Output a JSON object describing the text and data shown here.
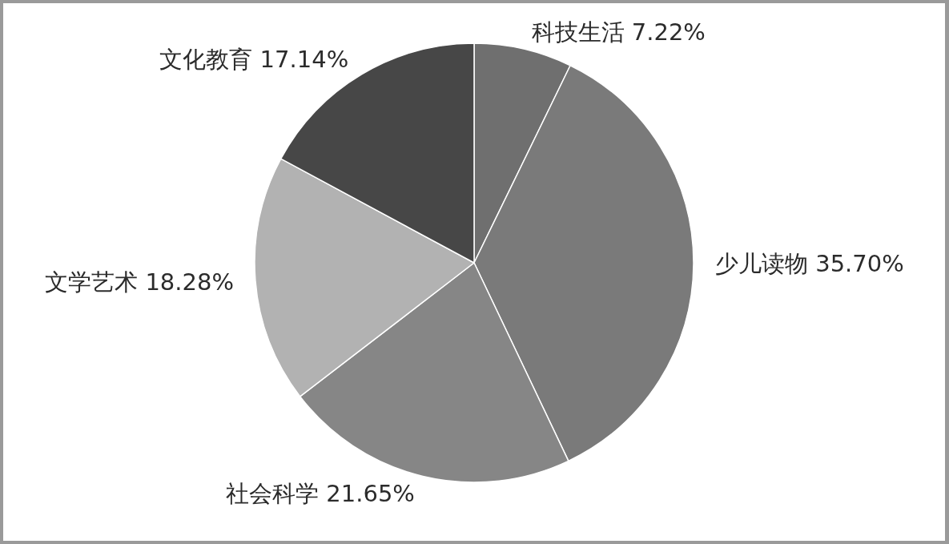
{
  "chart_data": {
    "type": "pie",
    "categories": [
      "科技生活",
      "少儿读物",
      "社会科学",
      "文学艺术",
      "文化教育"
    ],
    "values": [
      7.22,
      35.7,
      21.65,
      18.28,
      17.14
    ],
    "colors": [
      "#6f6f6f",
      "#7a7a7a",
      "#868686",
      "#b2b2b2",
      "#474747"
    ],
    "value_labels": [
      "7.22%",
      "35.70%",
      "21.65%",
      "18.28%",
      "17.14%"
    ]
  }
}
